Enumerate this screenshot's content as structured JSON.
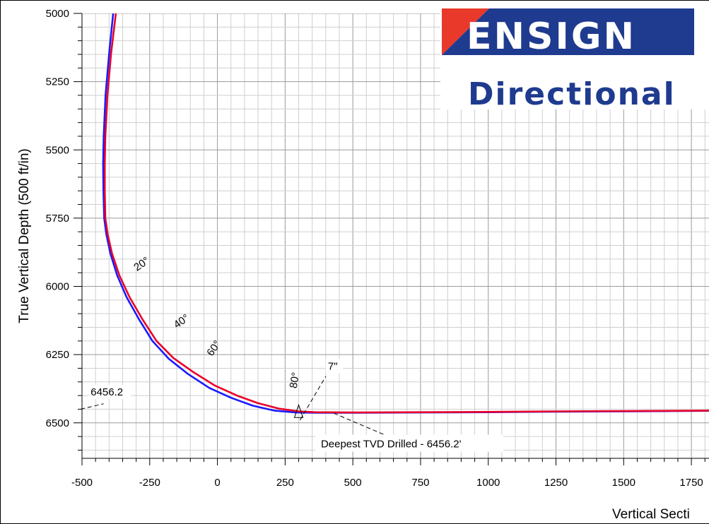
{
  "logo": {
    "top_text": "ENSIGN",
    "bottom_text": "Directional",
    "red": "#e8392b",
    "blue": "#1f3b8f",
    "text_blue": "#1f3b8f"
  },
  "chart_data": {
    "type": "line",
    "ylabel": "True Vertical Depth (500 ft/in)",
    "xlabel": "Vertical Secti",
    "xlim": [
      -500,
      1815
    ],
    "ylim": [
      6630,
      5000
    ],
    "y_inverted": true,
    "grid": true,
    "x_ticks": [
      "-500",
      "-250",
      "0",
      "250",
      "500",
      "750",
      "1000",
      "1250",
      "1500",
      "1750"
    ],
    "x_tick_values": [
      -500,
      -250,
      0,
      250,
      500,
      750,
      1000,
      1250,
      1500,
      1750
    ],
    "y_ticks": [
      "5000",
      "5250",
      "5500",
      "5750",
      "6000",
      "6250",
      "6500"
    ],
    "y_tick_values": [
      5000,
      5250,
      5500,
      5750,
      6000,
      6250,
      6500
    ],
    "series": [
      {
        "color": "#1a1aff",
        "points": [
          [
            -385,
            5000
          ],
          [
            -400,
            5150
          ],
          [
            -413,
            5300
          ],
          [
            -420,
            5450
          ],
          [
            -422,
            5550
          ],
          [
            -421,
            5650
          ],
          [
            -418,
            5750
          ],
          [
            -410,
            5810
          ],
          [
            -395,
            5880
          ],
          [
            -370,
            5960
          ],
          [
            -335,
            6040
          ],
          [
            -290,
            6120
          ],
          [
            -240,
            6200
          ],
          [
            -180,
            6265
          ],
          [
            -110,
            6320
          ],
          [
            -30,
            6372
          ],
          [
            50,
            6408
          ],
          [
            130,
            6437
          ],
          [
            210,
            6455
          ],
          [
            290,
            6462
          ],
          [
            360,
            6463
          ],
          [
            500,
            6463
          ],
          [
            750,
            6462
          ],
          [
            1000,
            6461
          ],
          [
            1250,
            6459
          ],
          [
            1500,
            6458
          ],
          [
            1815,
            6456
          ]
        ]
      },
      {
        "color": "#e8002a",
        "points": [
          [
            -375,
            5000
          ],
          [
            -393,
            5150
          ],
          [
            -406,
            5300
          ],
          [
            -414,
            5450
          ],
          [
            -416,
            5550
          ],
          [
            -416,
            5650
          ],
          [
            -414,
            5750
          ],
          [
            -405,
            5810
          ],
          [
            -389,
            5880
          ],
          [
            -362,
            5960
          ],
          [
            -324,
            6040
          ],
          [
            -277,
            6120
          ],
          [
            -225,
            6200
          ],
          [
            -163,
            6262
          ],
          [
            -92,
            6312
          ],
          [
            -10,
            6363
          ],
          [
            72,
            6400
          ],
          [
            150,
            6428
          ],
          [
            228,
            6448
          ],
          [
            300,
            6458
          ],
          [
            360,
            6461
          ],
          [
            500,
            6462
          ],
          [
            750,
            6461
          ],
          [
            1000,
            6460
          ],
          [
            1250,
            6458
          ],
          [
            1500,
            6457
          ],
          [
            1815,
            6455
          ]
        ]
      }
    ],
    "annotations": [
      {
        "text": "20°",
        "x": -297,
        "y": 5945,
        "rotate": -35
      },
      {
        "text": "40°",
        "x": -150,
        "y": 6155,
        "rotate": -35
      },
      {
        "text": "60°",
        "x": -20,
        "y": 6258,
        "rotate": -55
      },
      {
        "text": "80°",
        "x": 292,
        "y": 6375,
        "rotate": -80
      },
      {
        "text": "7\"",
        "x": 408,
        "y": 6305,
        "rotate": 0
      },
      {
        "text": "6456.2",
        "x": -468,
        "y": 6400,
        "rotate": 0
      }
    ],
    "callout": {
      "text": "Deepest TVD Drilled - 6456.2'",
      "x": 382,
      "y": 6585
    }
  }
}
